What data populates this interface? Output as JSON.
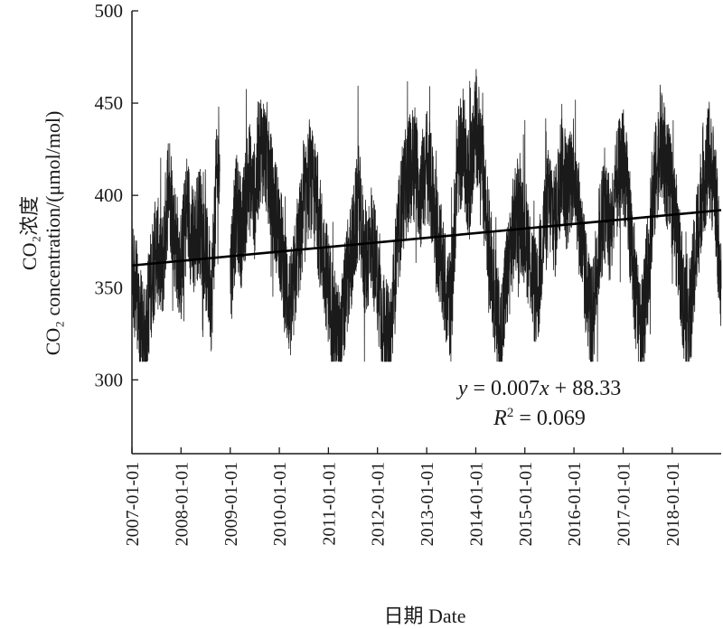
{
  "chart_data": {
    "type": "line",
    "ylabel_cn": "CO₂浓度",
    "ylabel_en": "CO₂ concentration/(μmol/mol)",
    "xlabel": "日期 Date",
    "ylim": [
      260,
      500
    ],
    "xlim": [
      "2007-01-01",
      "2018-12-31"
    ],
    "y_ticks": [
      300,
      350,
      400,
      450,
      500
    ],
    "x_ticks": [
      "2007-01-01",
      "2008-01-01",
      "2009-01-01",
      "2010-01-01",
      "2011-01-01",
      "2012-01-01",
      "2013-01-01",
      "2014-01-01",
      "2015-01-01",
      "2016-01-01",
      "2017-01-01",
      "2018-01-01"
    ],
    "grid": false,
    "series": [
      {
        "style": "daily-line",
        "color": "#1a1a1a",
        "segments": [
          {
            "x": [
              "2007-01-01",
              "2007-02-15",
              "2007-04-01",
              "2007-05-15",
              "2007-07-01",
              "2007-08-15",
              "2007-10-01",
              "2007-11-15",
              "2008-01-01",
              "2008-02-15",
              "2008-04-01",
              "2008-05-15",
              "2008-07-01",
              "2008-08-15",
              "2008-09-15",
              "2008-10-15"
            ],
            "y": [
              362,
              340,
              318,
              348,
              372,
              358,
              410,
              378,
              360,
              395,
              372,
              388,
              368,
              345,
              400,
              430
            ]
          },
          {
            "x": [
              "2009-01-01",
              "2009-02-15",
              "2009-04-01",
              "2009-05-15",
              "2009-07-01",
              "2009-08-15",
              "2009-10-01",
              "2009-11-15",
              "2010-01-01",
              "2010-02-15",
              "2010-04-01",
              "2010-05-15",
              "2010-07-01",
              "2010-08-15",
              "2010-10-01",
              "2010-11-15",
              "2011-01-01",
              "2011-02-15",
              "2011-04-01",
              "2011-05-15",
              "2011-07-01",
              "2011-08-15",
              "2011-10-01",
              "2011-11-15",
              "2012-01-01",
              "2012-02-15",
              "2012-04-01",
              "2012-05-15",
              "2012-07-01",
              "2012-08-15",
              "2012-10-01",
              "2012-11-15",
              "2013-01-01",
              "2013-02-15",
              "2013-04-01",
              "2013-05-15",
              "2013-07-01",
              "2013-08-15",
              "2013-10-01",
              "2013-11-15",
              "2014-01-01",
              "2014-02-15",
              "2014-04-01",
              "2014-05-15",
              "2014-07-01",
              "2014-08-15",
              "2014-10-01",
              "2014-11-15",
              "2015-01-01",
              "2015-02-15",
              "2015-04-01",
              "2015-05-15",
              "2015-07-01",
              "2015-08-15",
              "2015-10-01",
              "2015-11-15",
              "2016-01-01",
              "2016-02-15",
              "2016-04-01",
              "2016-05-15",
              "2016-07-01",
              "2016-08-15",
              "2016-10-01",
              "2016-11-15",
              "2017-01-01",
              "2017-02-15",
              "2017-04-01",
              "2017-05-15",
              "2017-07-01",
              "2017-08-15",
              "2017-10-01",
              "2017-11-15",
              "2018-01-01",
              "2018-02-15",
              "2018-04-01",
              "2018-05-15",
              "2018-07-01",
              "2018-08-15",
              "2018-10-01",
              "2018-11-15",
              "2018-12-31"
            ],
            "y": [
              355,
              392,
              378,
              412,
              398,
              428,
              420,
              395,
              382,
              352,
              338,
              368,
              390,
              410,
              396,
              372,
              350,
              330,
              318,
              352,
              372,
              398,
              360,
              378,
              355,
              328,
              318,
              360,
              398,
              410,
              422,
              400,
              418,
              398,
              372,
              352,
              338,
              418,
              425,
              405,
              440,
              418,
              380,
              350,
              320,
              352,
              378,
              392,
              382,
              362,
              340,
              380,
              398,
              385,
              420,
              400,
              418,
              382,
              352,
              330,
              372,
              395,
              380,
              405,
              420,
              390,
              348,
              322,
              358,
              400,
              430,
              415,
              398,
              372,
              340,
              335,
              375,
              408,
              418,
              405,
              345
            ]
          }
        ]
      },
      {
        "style": "trend-line",
        "color": "#000000",
        "x": [
          "2007-01-01",
          "2018-12-31"
        ],
        "y": [
          362,
          392
        ]
      }
    ],
    "annotation": {
      "equation": "y = 0.007x + 88.33",
      "r_squared": "R2 = 0.069"
    }
  }
}
